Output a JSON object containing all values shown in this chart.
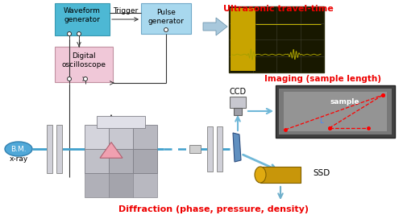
{
  "label_ultrasonic": "Ultrasonic travel-time",
  "label_imaging": "Imaging (sample length)",
  "label_diffraction": "Diffraction (phase, pressure, density)",
  "label_waveform": "Waveform\ngenerator",
  "label_pulse": "Pulse\ngenerator",
  "label_digital": "Digital\noscilloscope",
  "label_trigger": "Trigger",
  "label_ccd": "CCD",
  "label_ssd": "SSD",
  "label_bm": "B.M.",
  "label_xray": "x-ray",
  "label_sample": "sample",
  "label_L": "L",
  "color_waveform_box": "#4db8d4",
  "color_pulse_box": "#a8d8ee",
  "color_digital_box": "#f0c8d8",
  "color_red_text": "#ee0000",
  "color_blue_beam": "#40a0cc",
  "color_blue_arrow": "#70b8d8",
  "color_gray1": "#d0d0d8",
  "color_gray2": "#b8b8c4",
  "color_gray3": "#a0a0ac",
  "color_gray4": "#c8c8d4",
  "color_gold": "#c8960a",
  "color_gold2": "#e0aa10",
  "color_pink": "#f0a0b0",
  "color_bm_ellipse": "#50a8d8",
  "bg_color": "#ffffff"
}
